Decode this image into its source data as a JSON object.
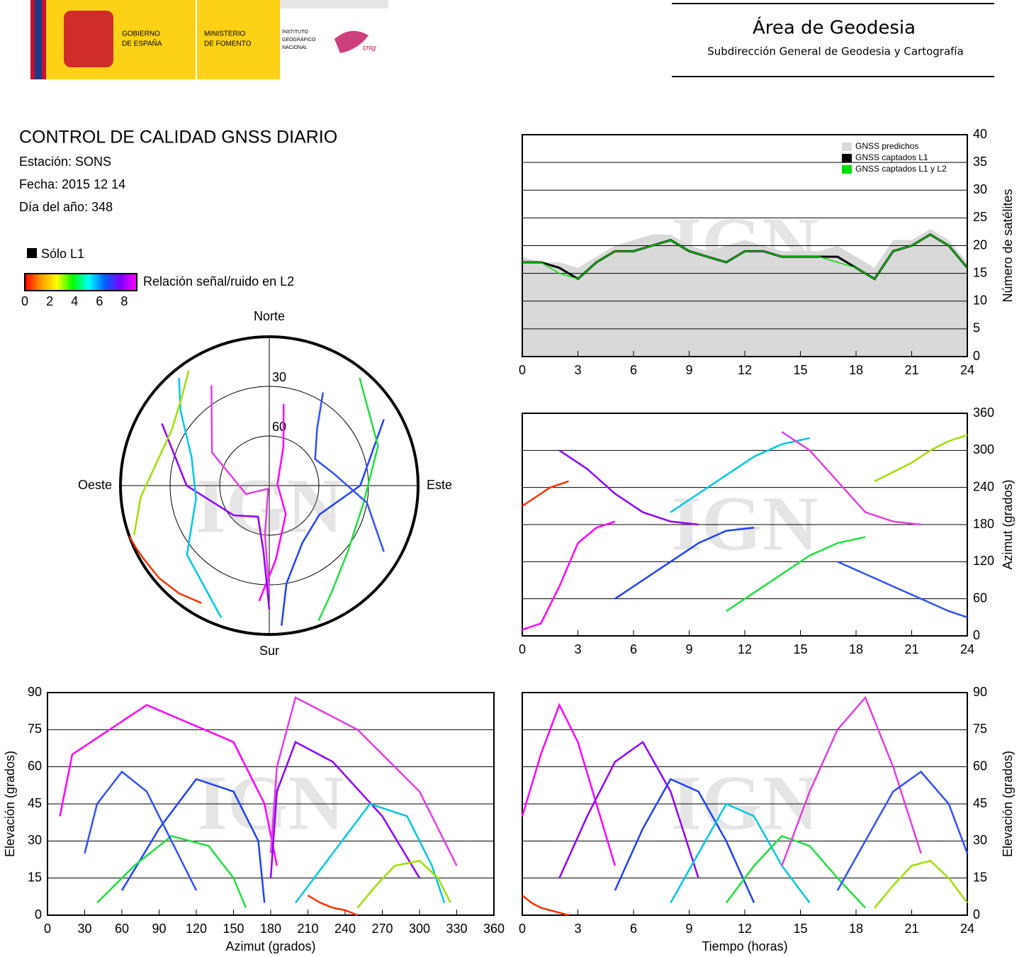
{
  "header": {
    "gov_line1": "GOBIERNO",
    "gov_line2": "DE ESPAÑA",
    "min_line1": "MINISTERIO",
    "min_line2": "DE FOMENTO",
    "ign_line1": "INSTITUTO",
    "ign_line2": "GEOGRÁFICO",
    "ign_line3": "NACIONAL",
    "cnig": "cnig",
    "area": "Área de Geodesia",
    "subdireccion": "Subdirección General de Geodesia y Cartografía"
  },
  "report": {
    "title": "CONTROL DE CALIDAD GNSS DIARIO",
    "station": "Estación: SONS",
    "date": "Fecha: 2015 12 14",
    "doy": "Día del año: 348"
  },
  "watermark": "IGN",
  "chart_data": [
    {
      "type": "line",
      "ylabel": "Número de satélites",
      "xlim": [
        0,
        24
      ],
      "xticks": [
        0,
        3,
        6,
        9,
        12,
        15,
        18,
        21,
        24
      ],
      "ylim": [
        0,
        40
      ],
      "yticks": [
        0,
        5,
        10,
        15,
        20,
        25,
        30,
        35,
        40
      ],
      "grid": true,
      "legend": "top-right",
      "x": [
        0,
        1,
        2,
        3,
        4,
        5,
        6,
        7,
        8,
        9,
        10,
        11,
        12,
        13,
        14,
        15,
        16,
        17,
        18,
        19,
        20,
        21,
        22,
        23,
        24
      ],
      "series": [
        {
          "name": "GNSS predichos",
          "color": "#d9d9d9",
          "values": [
            18,
            17,
            17,
            16,
            18,
            20,
            21,
            22,
            22,
            20,
            19,
            20,
            21,
            20,
            19,
            19,
            19,
            20,
            18,
            16,
            21,
            21,
            23,
            21,
            17
          ]
        },
        {
          "name": "GNSS captados L1",
          "color": "#000000",
          "values": [
            17,
            17,
            16,
            14,
            17,
            19,
            19,
            20,
            21,
            19,
            18,
            17,
            19,
            19,
            18,
            18,
            18,
            18,
            16,
            14,
            19,
            20,
            22,
            20,
            16
          ]
        },
        {
          "name": "GNSS captados L1 y L2",
          "color": "#00e000",
          "values": [
            17,
            17,
            15,
            14,
            17,
            19,
            19,
            20,
            21,
            19,
            18,
            17,
            19,
            19,
            18,
            18,
            18,
            17,
            16,
            14,
            19,
            20,
            22,
            20,
            16
          ]
        }
      ]
    },
    {
      "type": "tracks",
      "l1_only": "Sólo L1",
      "l1_color": "#000000",
      "colorbar": {
        "label": "Relación señal/ruido en L2",
        "lim": [
          0,
          9
        ],
        "ticks": [
          0,
          2,
          4,
          6,
          8
        ],
        "colors": [
          "#ff0000",
          "#ff9900",
          "#ffff00",
          "#00ff00",
          "#00ffff",
          "#0060ff",
          "#8000ff",
          "#ff00ff"
        ]
      },
      "skyplot": {
        "north": "Norte",
        "south": "Sur",
        "east": "Este",
        "west": "Oeste",
        "rings": [
          30,
          60
        ]
      },
      "az_time": {
        "ylabel": "Azimut (grados)",
        "xlim": [
          0,
          24
        ],
        "xticks": [
          0,
          3,
          6,
          9,
          12,
          15,
          18,
          21,
          24
        ],
        "ylim": [
          0,
          360
        ],
        "yticks": [
          0,
          60,
          120,
          180,
          240,
          300,
          360
        ]
      },
      "el_az": {
        "xlabel": "Azimut (grados)",
        "ylabel": "Elevación (grados)",
        "xlim": [
          0,
          360
        ],
        "xticks": [
          0,
          30,
          60,
          90,
          120,
          150,
          180,
          210,
          240,
          270,
          300,
          330,
          360
        ],
        "ylim": [
          0,
          90
        ],
        "yticks": [
          0,
          15,
          30,
          45,
          60,
          75,
          90
        ]
      },
      "el_time": {
        "xlabel": "Tiempo (horas)",
        "ylabel": "Elevación (grados)",
        "xlim": [
          0,
          24
        ],
        "xticks": [
          0,
          3,
          6,
          9,
          12,
          15,
          18,
          21,
          24
        ],
        "ylim": [
          0,
          90
        ],
        "yticks": [
          0,
          15,
          30,
          45,
          60,
          75,
          90
        ]
      },
      "series": [
        {
          "color": "#ff00ff",
          "time": [
            0,
            1,
            2,
            3,
            4,
            5
          ],
          "azimuth": [
            10,
            20,
            80,
            150,
            175,
            185
          ],
          "elevation": [
            40,
            65,
            85,
            70,
            45,
            20
          ]
        },
        {
          "color": "#9000ff",
          "time": [
            2,
            3.5,
            5,
            6.5,
            8,
            9.5
          ],
          "azimuth": [
            300,
            270,
            230,
            200,
            185,
            180
          ],
          "elevation": [
            15,
            40,
            62,
            70,
            50,
            15
          ]
        },
        {
          "color": "#2040ff",
          "time": [
            5,
            6.5,
            8,
            9.5,
            11,
            12.5
          ],
          "azimuth": [
            60,
            90,
            120,
            150,
            170,
            175
          ],
          "elevation": [
            10,
            35,
            55,
            50,
            30,
            5
          ]
        },
        {
          "color": "#00c8e0",
          "time": [
            8,
            9.5,
            11,
            12.5,
            14,
            15.5
          ],
          "azimuth": [
            200,
            230,
            260,
            290,
            310,
            320
          ],
          "elevation": [
            5,
            25,
            45,
            40,
            20,
            5
          ]
        },
        {
          "color": "#20e040",
          "time": [
            11,
            12.5,
            14,
            15.5,
            17,
            18.5
          ],
          "azimuth": [
            40,
            70,
            100,
            130,
            150,
            160
          ],
          "elevation": [
            5,
            20,
            32,
            28,
            15,
            3
          ]
        },
        {
          "color": "#e040e0",
          "time": [
            14,
            15.5,
            17,
            18.5,
            20,
            21.5
          ],
          "azimuth": [
            330,
            300,
            250,
            200,
            185,
            180
          ],
          "elevation": [
            20,
            50,
            75,
            88,
            60,
            25
          ]
        },
        {
          "color": "#3050ff",
          "time": [
            17,
            18.5,
            20,
            21.5,
            23,
            24
          ],
          "azimuth": [
            120,
            100,
            80,
            60,
            40,
            30
          ],
          "elevation": [
            10,
            30,
            50,
            58,
            45,
            25
          ]
        },
        {
          "color": "#a0e000",
          "time": [
            19,
            20,
            21,
            22,
            23,
            24
          ],
          "azimuth": [
            250,
            265,
            280,
            300,
            315,
            325
          ],
          "elevation": [
            3,
            12,
            20,
            22,
            15,
            5
          ]
        },
        {
          "color": "#ff3000",
          "time": [
            0,
            0.5,
            1,
            1.5,
            2,
            2.5
          ],
          "azimuth": [
            210,
            220,
            230,
            240,
            245,
            250
          ],
          "elevation": [
            8,
            5,
            3,
            2,
            1,
            0
          ]
        }
      ]
    }
  ]
}
